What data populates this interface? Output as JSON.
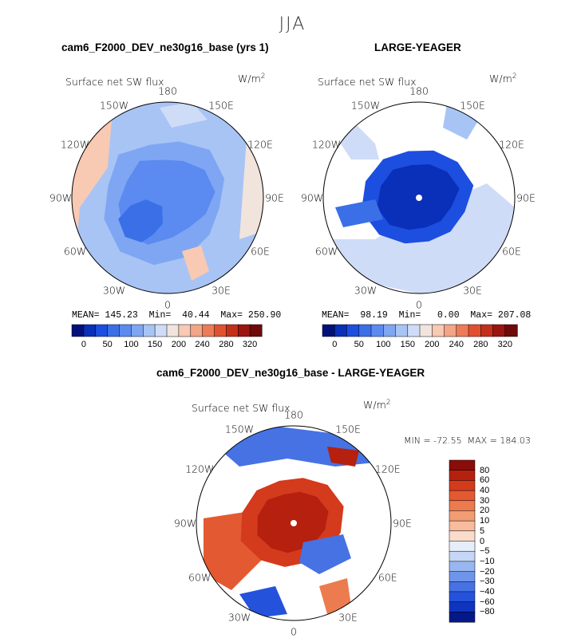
{
  "season": "JJA",
  "chart_data": [
    {
      "type": "polar-contour-map",
      "title": "cam6_F2000_DEV_ne30g16_base (yrs 1)",
      "variable": "Surface net SW flux",
      "units": "W/m",
      "units_exp": "2",
      "longitude_labels": [
        "180",
        "150E",
        "120E",
        "90E",
        "60E",
        "30E",
        "0",
        "30W",
        "60W",
        "90W",
        "120W",
        "150W"
      ],
      "stats": {
        "mean_label": "MEAN=",
        "mean": "145.23",
        "min_label": "Min=",
        "min": "40.44",
        "max_label": "Max=",
        "max": "250.90"
      },
      "colorbar_labels": [
        "0",
        "50",
        "100",
        "150",
        "200",
        "240",
        "280",
        "320"
      ],
      "colors": [
        "#02117a",
        "#0a2fb8",
        "#1c4fe0",
        "#3a6fe8",
        "#5b8af0",
        "#7fa6f3",
        "#a8c4f5",
        "#cfdcf8",
        "#f1e4dc",
        "#f8c9b3",
        "#f4a586",
        "#ee7b57",
        "#e2512f",
        "#c52f1a",
        "#9c1410",
        "#6e0a0a"
      ]
    },
    {
      "type": "polar-contour-map",
      "title": "LARGE-YEAGER",
      "variable": "Surface net SW flux",
      "units": "W/m",
      "units_exp": "2",
      "longitude_labels": [
        "180",
        "150E",
        "120E",
        "90E",
        "60E",
        "30E",
        "0",
        "30W",
        "60W",
        "90W",
        "120W",
        "150W"
      ],
      "stats": {
        "mean_label": "MEAN=",
        "mean": "98.19",
        "min_label": "Min=",
        "min": "0.00",
        "max_label": "Max=",
        "max": "207.08"
      },
      "colorbar_labels": [
        "0",
        "50",
        "100",
        "150",
        "200",
        "240",
        "280",
        "320"
      ]
    },
    {
      "type": "polar-contour-map-difference",
      "title": "cam6_F2000_DEV_ne30g16_base - LARGE-YEAGER",
      "variable": "Surface net SW flux",
      "units": "W/m",
      "units_exp": "2",
      "longitude_labels": [
        "180",
        "150E",
        "120E",
        "90E",
        "60E",
        "30E",
        "0",
        "30W",
        "60W",
        "90W",
        "120W",
        "150W"
      ],
      "stats_text": "MIN = -72.55  MAX = 184.03",
      "colorbar_labels": [
        "80",
        "60",
        "40",
        "30",
        "20",
        "10",
        "5",
        "0",
        "−5",
        "−10",
        "−20",
        "−30",
        "−40",
        "−60",
        "−80"
      ],
      "colors": [
        "#8a0d0a",
        "#b5200f",
        "#d43a1c",
        "#e35a32",
        "#ec7b4f",
        "#f29c73",
        "#f6bc9d",
        "#f9dccb",
        "#e6eefb",
        "#c5d6f6",
        "#99b6f0",
        "#6f95ea",
        "#4672e4",
        "#2552db",
        "#0f34bf",
        "#04188c"
      ]
    }
  ]
}
